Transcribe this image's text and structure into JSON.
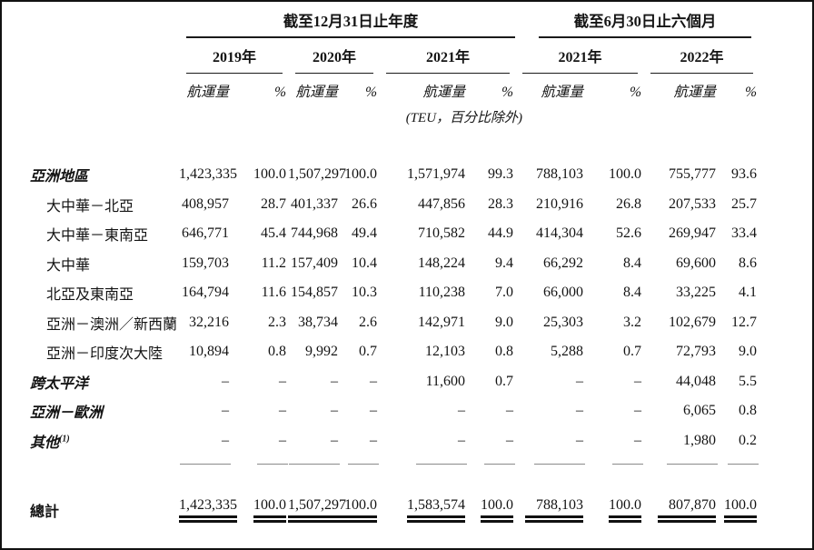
{
  "table": {
    "col_groups": [
      {
        "title": "截至12月31日止年度",
        "years": [
          {
            "label": "2019年"
          },
          {
            "label": "2020年"
          },
          {
            "label": "2021年"
          }
        ]
      },
      {
        "title": "截至6月30日止六個月",
        "years": [
          {
            "label": "2021年"
          },
          {
            "label": "2022年"
          }
        ]
      }
    ],
    "subheaders": {
      "volume": "航運量",
      "percent": "%"
    },
    "unit_note": "(TEU，百分比除外)",
    "rows": [
      {
        "label": "亞洲地區",
        "style": "sec",
        "cells": [
          "1,423,335",
          "100.0",
          "1,507,297",
          "100.0",
          "1,571,974",
          "99.3",
          "788,103",
          "100.0",
          "755,777",
          "93.6"
        ]
      },
      {
        "label": "大中華－北亞",
        "style": "sub",
        "cells": [
          "408,957",
          "28.7",
          "401,337",
          "26.6",
          "447,856",
          "28.3",
          "210,916",
          "26.8",
          "207,533",
          "25.7"
        ]
      },
      {
        "label": "大中華－東南亞",
        "style": "sub",
        "cells": [
          "646,771",
          "45.4",
          "744,968",
          "49.4",
          "710,582",
          "44.9",
          "414,304",
          "52.6",
          "269,947",
          "33.4"
        ]
      },
      {
        "label": "大中華",
        "style": "sub",
        "cells": [
          "159,703",
          "11.2",
          "157,409",
          "10.4",
          "148,224",
          "9.4",
          "66,292",
          "8.4",
          "69,600",
          "8.6"
        ]
      },
      {
        "label": "北亞及東南亞",
        "style": "sub",
        "cells": [
          "164,794",
          "11.6",
          "154,857",
          "10.3",
          "110,238",
          "7.0",
          "66,000",
          "8.4",
          "33,225",
          "4.1"
        ]
      },
      {
        "label": "亞洲－澳洲／新西蘭",
        "style": "sub",
        "cells": [
          "32,216",
          "2.3",
          "38,734",
          "2.6",
          "142,971",
          "9.0",
          "25,303",
          "3.2",
          "102,679",
          "12.7"
        ]
      },
      {
        "label": "亞洲－印度次大陸",
        "style": "sub",
        "cells": [
          "10,894",
          "0.8",
          "9,992",
          "0.7",
          "12,103",
          "0.8",
          "5,288",
          "0.7",
          "72,793",
          "9.0"
        ]
      },
      {
        "label": "跨太平洋",
        "style": "sec",
        "cells": [
          "–",
          "–",
          "–",
          "–",
          "11,600",
          "0.7",
          "–",
          "–",
          "44,048",
          "5.5"
        ]
      },
      {
        "label": "亞洲－歐洲",
        "style": "sec",
        "cells": [
          "–",
          "–",
          "–",
          "–",
          "–",
          "–",
          "–",
          "–",
          "6,065",
          "0.8"
        ]
      },
      {
        "label": "其他",
        "label_sup": "(1)",
        "style": "sec",
        "cells": [
          "–",
          "–",
          "–",
          "–",
          "–",
          "–",
          "–",
          "–",
          "1,980",
          "0.2"
        ]
      }
    ],
    "total": {
      "label": "總計",
      "cells": [
        "1,423,335",
        "100.0",
        "1,507,297",
        "100.0",
        "1,583,574",
        "100.0",
        "788,103",
        "100.0",
        "807,870",
        "100.0"
      ]
    }
  }
}
